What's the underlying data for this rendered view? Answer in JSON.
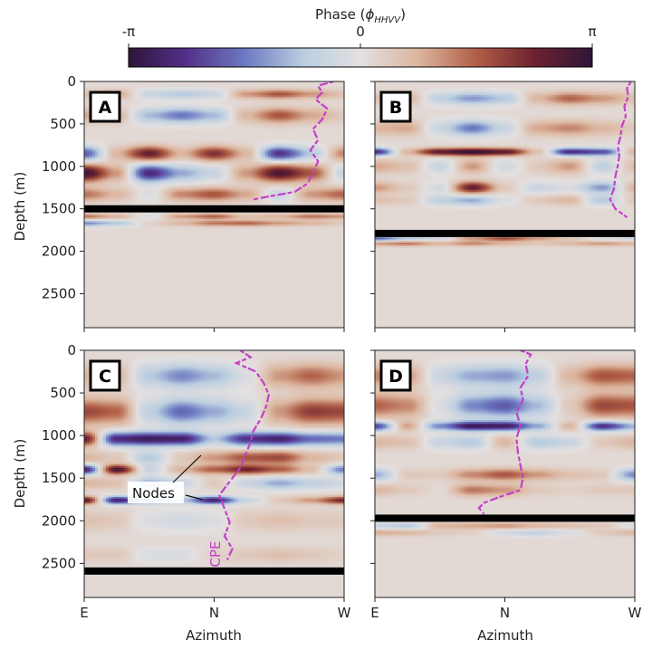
{
  "colorbar": {
    "label": "Phase (ϕHHVV)",
    "label_main": "Phase (",
    "label_phi": "ϕ",
    "label_sub": "HHVV",
    "label_close": ")",
    "ticks": [
      "-π",
      "0",
      "π"
    ],
    "range": [
      -3.1416,
      3.1416
    ],
    "colormap": "twilight_shifted",
    "stops": [
      "#2e1539",
      "#54308a",
      "#6b79c2",
      "#b9cde0",
      "#e3e0e0",
      "#dcb59e",
      "#b05e46",
      "#6d2230",
      "#2e1539"
    ]
  },
  "chart_data": [
    {
      "type": "heatmap",
      "panel": "A",
      "xlabel": "",
      "ylabel": "Depth (m)",
      "x_ticks": [
        "E",
        "N",
        "W"
      ],
      "y_ticks": [
        0,
        500,
        1000,
        1500,
        2000,
        2500
      ],
      "ylim": [
        2900,
        0
      ],
      "bed_depth_m": 1500,
      "bands": [
        {
          "depth": 150,
          "w": 55,
          "pattern": [
            0.15,
            0.25,
            -0.2,
            -0.3,
            -0.2,
            0.3,
            0.5,
            0.3,
            0.15
          ]
        },
        {
          "depth": 400,
          "w": 90,
          "pattern": [
            0.25,
            0.2,
            -0.35,
            -0.55,
            -0.35,
            0.2,
            0.5,
            0.25,
            0.1
          ]
        },
        {
          "depth": 850,
          "w": 85,
          "pattern": [
            -0.65,
            0.2,
            0.75,
            0.2,
            0.65,
            0.2,
            -0.8,
            -0.3,
            0.35
          ]
        },
        {
          "depth": 1080,
          "w": 100,
          "pattern": [
            0.9,
            0.3,
            -0.85,
            -0.4,
            -0.2,
            0.3,
            0.85,
            0.5,
            -0.2
          ]
        },
        {
          "depth": 1330,
          "w": 80,
          "pattern": [
            0.4,
            0.2,
            -0.1,
            0.35,
            0.5,
            0.25,
            -0.2,
            0.3,
            0.45
          ]
        },
        {
          "depth": 1590,
          "w": 35,
          "pattern": [
            0.4,
            0.2,
            -0.1,
            0.3,
            0.45,
            0.15,
            0.2,
            0.4,
            0.3
          ]
        },
        {
          "depth": 1670,
          "w": 35,
          "pattern": [
            -0.5,
            -0.3,
            0.05,
            0.2,
            0.4,
            0.45,
            0.3,
            0.2,
            0.1
          ]
        }
      ],
      "cpe": [
        [
          960,
          0
        ],
        [
          900,
          50
        ],
        [
          915,
          130
        ],
        [
          890,
          210
        ],
        [
          935,
          320
        ],
        [
          915,
          450
        ],
        [
          880,
          560
        ],
        [
          900,
          690
        ],
        [
          870,
          810
        ],
        [
          900,
          940
        ],
        [
          880,
          1070
        ],
        [
          860,
          1200
        ],
        [
          810,
          1300
        ],
        [
          700,
          1360
        ],
        [
          650,
          1390
        ]
      ]
    },
    {
      "type": "heatmap",
      "panel": "B",
      "xlabel": "",
      "ylabel": "",
      "x_ticks": [
        "E",
        "N",
        "W"
      ],
      "y_ticks": [
        0,
        500,
        1000,
        1500,
        2000,
        2500
      ],
      "ylim": [
        2900,
        0
      ],
      "bed_depth_m": 1790,
      "bands": [
        {
          "depth": 200,
          "w": 75,
          "pattern": [
            0.15,
            0.2,
            -0.25,
            -0.45,
            -0.3,
            0.2,
            0.45,
            0.3,
            0.15
          ]
        },
        {
          "depth": 550,
          "w": 90,
          "pattern": [
            0.2,
            0.25,
            -0.2,
            -0.55,
            -0.2,
            0.25,
            0.35,
            0.2,
            0.1
          ]
        },
        {
          "depth": 830,
          "w": 45,
          "pattern": [
            -0.85,
            0.2,
            0.8,
            0.95,
            0.8,
            0.15,
            -0.85,
            -0.7,
            0.2
          ]
        },
        {
          "depth": 1000,
          "w": 85,
          "pattern": [
            0.25,
            0.15,
            -0.2,
            0.3,
            -0.15,
            0.1,
            0.3,
            -0.25,
            0.15
          ]
        },
        {
          "depth": 1250,
          "w": 70,
          "pattern": [
            0.3,
            0.1,
            -0.15,
            0.75,
            0.1,
            -0.2,
            -0.1,
            -0.45,
            0.2
          ]
        },
        {
          "depth": 1400,
          "w": 60,
          "pattern": [
            0.15,
            0.1,
            -0.25,
            -0.4,
            -0.1,
            0.1,
            0.2,
            -0.3,
            0.1
          ]
        },
        {
          "depth": 1850,
          "w": 30,
          "pattern": [
            -0.65,
            -0.3,
            -0.15,
            0.3,
            0.55,
            0.3,
            0.1,
            -0.1,
            -0.2
          ]
        },
        {
          "depth": 1910,
          "w": 30,
          "pattern": [
            0.3,
            0.4,
            0.2,
            0.35,
            0.2,
            0.1,
            0.2,
            0.3,
            0.2
          ]
        }
      ],
      "cpe": [
        [
          985,
          0
        ],
        [
          970,
          80
        ],
        [
          975,
          180
        ],
        [
          960,
          290
        ],
        [
          965,
          410
        ],
        [
          950,
          530
        ],
        [
          945,
          650
        ],
        [
          935,
          760
        ],
        [
          940,
          880
        ],
        [
          935,
          990
        ],
        [
          925,
          1120
        ],
        [
          920,
          1260
        ],
        [
          905,
          1390
        ],
        [
          925,
          1500
        ],
        [
          970,
          1600
        ]
      ]
    },
    {
      "type": "heatmap",
      "panel": "C",
      "xlabel": "Azimuth",
      "ylabel": "Depth (m)",
      "x_ticks": [
        "E",
        "N",
        "W"
      ],
      "y_ticks": [
        0,
        500,
        1000,
        1500,
        2000,
        2500
      ],
      "ylim": [
        2900,
        0
      ],
      "bed_depth_m": 2590,
      "bands": [
        {
          "depth": 300,
          "w": 140,
          "pattern": [
            0.2,
            0.2,
            -0.3,
            -0.5,
            -0.35,
            -0.1,
            0.3,
            0.45,
            0.3
          ]
        },
        {
          "depth": 720,
          "w": 150,
          "pattern": [
            0.55,
            0.45,
            -0.25,
            -0.6,
            -0.4,
            -0.2,
            0.3,
            0.6,
            0.55
          ]
        },
        {
          "depth": 1040,
          "w": 80,
          "pattern": [
            0.75,
            -0.85,
            -0.95,
            -0.9,
            -0.3,
            -0.8,
            -0.9,
            -0.6,
            -0.55
          ]
        },
        {
          "depth": 1260,
          "w": 80,
          "pattern": [
            0.2,
            0.1,
            -0.3,
            0.1,
            0.3,
            0.5,
            0.55,
            0.2,
            0.1
          ]
        },
        {
          "depth": 1400,
          "w": 55,
          "pattern": [
            -0.9,
            0.85,
            -0.2,
            0.2,
            0.45,
            0.7,
            0.45,
            0.15,
            -0.55
          ]
        },
        {
          "depth": 1560,
          "w": 70,
          "pattern": [
            0.2,
            0.15,
            -0.4,
            -0.2,
            0.1,
            -0.2,
            -0.4,
            -0.25,
            -0.15
          ]
        },
        {
          "depth": 1760,
          "w": 45,
          "pattern": [
            0.8,
            -0.9,
            -0.45,
            -0.3,
            -0.9,
            -0.2,
            0.1,
            0.3,
            0.7
          ]
        },
        {
          "depth": 2000,
          "w": 120,
          "pattern": [
            0.15,
            0.1,
            -0.1,
            -0.15,
            -0.1,
            0.1,
            0.15,
            0.1,
            0.1
          ]
        },
        {
          "depth": 2400,
          "w": 90,
          "pattern": [
            0.1,
            0.1,
            -0.1,
            -0.1,
            0.05,
            0.1,
            0.15,
            0.1,
            0.05
          ]
        }
      ],
      "cpe": [
        [
          600,
          0
        ],
        [
          640,
          80
        ],
        [
          585,
          150
        ],
        [
          660,
          250
        ],
        [
          690,
          380
        ],
        [
          710,
          520
        ],
        [
          700,
          660
        ],
        [
          680,
          800
        ],
        [
          650,
          950
        ],
        [
          640,
          1080
        ],
        [
          620,
          1230
        ],
        [
          600,
          1380
        ],
        [
          560,
          1540
        ],
        [
          520,
          1700
        ],
        [
          540,
          1860
        ],
        [
          560,
          2020
        ],
        [
          540,
          2180
        ],
        [
          570,
          2330
        ],
        [
          550,
          2460
        ]
      ],
      "annotations": {
        "nodes": "Nodes",
        "cpe": "CPE"
      }
    },
    {
      "type": "heatmap",
      "panel": "D",
      "xlabel": "Azimuth",
      "ylabel": "",
      "x_ticks": [
        "E",
        "N",
        "W"
      ],
      "y_ticks": [
        0,
        500,
        1000,
        1500,
        2000,
        2500
      ],
      "ylim": [
        2900,
        0
      ],
      "bed_depth_m": 1970,
      "bands": [
        {
          "depth": 300,
          "w": 130,
          "pattern": [
            0.35,
            0.3,
            -0.2,
            -0.4,
            -0.45,
            -0.25,
            0.2,
            0.5,
            0.45
          ]
        },
        {
          "depth": 650,
          "w": 140,
          "pattern": [
            0.45,
            0.35,
            -0.1,
            -0.5,
            -0.65,
            -0.35,
            0.1,
            0.55,
            0.5
          ]
        },
        {
          "depth": 890,
          "w": 55,
          "pattern": [
            -0.75,
            0.25,
            -0.5,
            -0.95,
            -0.9,
            -0.4,
            0.2,
            -0.85,
            -0.4
          ]
        },
        {
          "depth": 1080,
          "w": 80,
          "pattern": [
            0.2,
            0.15,
            -0.2,
            -0.3,
            0.2,
            -0.3,
            -0.2,
            0.1,
            0.2
          ]
        },
        {
          "depth": 1460,
          "w": 70,
          "pattern": [
            -0.4,
            0.1,
            0.1,
            0.35,
            0.5,
            0.3,
            0.15,
            0.1,
            -0.5
          ]
        },
        {
          "depth": 1640,
          "w": 70,
          "pattern": [
            0.2,
            0.1,
            0.0,
            0.4,
            0.3,
            0.1,
            0.05,
            0.1,
            0.1
          ]
        },
        {
          "depth": 2060,
          "w": 40,
          "pattern": [
            -0.2,
            -0.3,
            0.2,
            0.25,
            0.3,
            0.2,
            0.15,
            0.1,
            -0.1
          ]
        },
        {
          "depth": 2140,
          "w": 40,
          "pattern": [
            0.25,
            0.2,
            0.1,
            0.05,
            -0.15,
            -0.25,
            -0.1,
            0.1,
            0.2
          ]
        }
      ],
      "cpe": [
        [
          560,
          0
        ],
        [
          600,
          50
        ],
        [
          580,
          160
        ],
        [
          590,
          300
        ],
        [
          560,
          440
        ],
        [
          570,
          580
        ],
        [
          545,
          730
        ],
        [
          560,
          880
        ],
        [
          545,
          1030
        ],
        [
          550,
          1200
        ],
        [
          560,
          1350
        ],
        [
          570,
          1500
        ],
        [
          560,
          1640
        ],
        [
          480,
          1720
        ],
        [
          420,
          1790
        ],
        [
          400,
          1850
        ],
        [
          420,
          1920
        ]
      ]
    }
  ],
  "cpe_color": "#c43fc9"
}
